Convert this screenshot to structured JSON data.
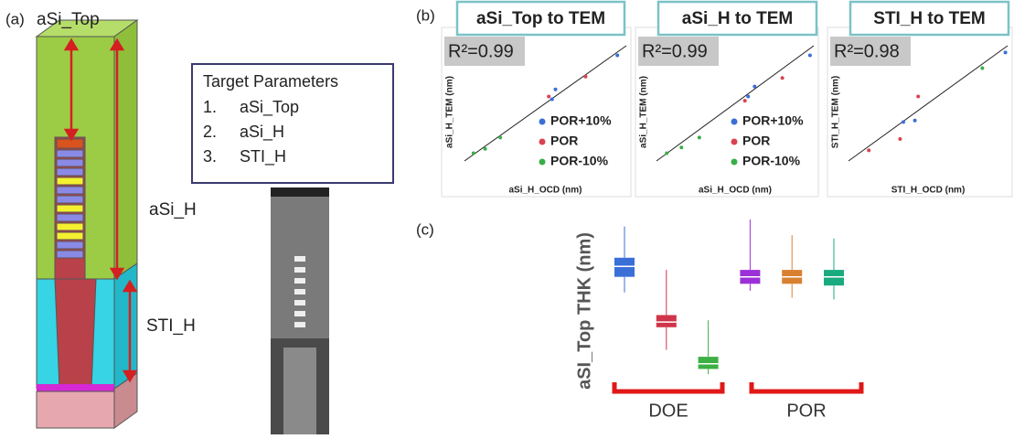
{
  "figure": {
    "panel_a": {
      "label": "(a)",
      "top_label": "aSi_Top",
      "mid_label": "aSi_H",
      "bottom_label": "STI_H",
      "box_title": "Target Parameters",
      "items": [
        [
          "1.",
          "aSi_Top"
        ],
        [
          "2.",
          "aSi_H"
        ],
        [
          "3.",
          "STI_H"
        ]
      ]
    },
    "panel_b": {
      "label": "(b)"
    },
    "panel_c": {
      "label": "(c)"
    }
  },
  "chart_data": [
    {
      "type": "scatter",
      "title": "aSi_Top to TEM",
      "annotation": "R²=0.99",
      "xlabel": "aSi_H_OCD (nm)",
      "ylabel": "aSi_H_TEM (nm)",
      "xlim": [
        0,
        100
      ],
      "ylim": [
        0,
        100
      ],
      "legend": true,
      "series": [
        {
          "name": "POR+10%",
          "color": "#3a6fd6",
          "x": [
            54,
            56,
            93
          ],
          "y": [
            59,
            66,
            90
          ]
        },
        {
          "name": "POR",
          "color": "#d9434f",
          "x": [
            52,
            74
          ],
          "y": [
            61,
            75
          ]
        },
        {
          "name": "POR-10%",
          "color": "#3aae48",
          "x": [
            7,
            14,
            23
          ],
          "y": [
            21,
            24,
            32
          ]
        }
      ]
    },
    {
      "type": "scatter",
      "title": "aSi_H to TEM",
      "annotation": "R²=0.99",
      "xlabel": "aSi_H_OCD (nm)",
      "ylabel": "aSi_H_TEM (nm)",
      "xlim": [
        0,
        100
      ],
      "ylim": [
        0,
        100
      ],
      "legend": true,
      "series": [
        {
          "name": "POR+10%",
          "color": "#3a6fd6",
          "x": [
            58,
            62,
            96
          ],
          "y": [
            61,
            68,
            90
          ]
        },
        {
          "name": "POR",
          "color": "#d9434f",
          "x": [
            56,
            79
          ],
          "y": [
            58,
            74
          ]
        },
        {
          "name": "POR-10%",
          "color": "#3aae48",
          "x": [
            8,
            17,
            28
          ],
          "y": [
            21,
            25,
            32
          ]
        }
      ]
    },
    {
      "type": "scatter",
      "title": "STI_H to TEM",
      "annotation": "R²=0.98",
      "xlabel": "STI_H_OCD (nm)",
      "ylabel": "STI_H_TEM (nm)",
      "xlim": [
        0,
        100
      ],
      "ylim": [
        0,
        100
      ],
      "legend": false,
      "series": [
        {
          "color": "#3a6fd6",
          "x": [
            35,
            42,
            97
          ],
          "y": [
            43,
            44,
            92
          ]
        },
        {
          "color": "#d9434f",
          "x": [
            14,
            33,
            44
          ],
          "y": [
            23,
            31,
            61
          ]
        },
        {
          "color": "#3aae48",
          "x": [
            83
          ],
          "y": [
            81
          ]
        }
      ]
    },
    {
      "type": "box",
      "ylabel": "aSI_Top THK (nm)",
      "ylim": [
        0,
        100
      ],
      "categories": [
        null,
        null,
        null,
        null,
        null,
        null
      ],
      "boxes": [
        {
          "color": "#3b6fd8",
          "low": 58,
          "q1": 67,
          "median": 73,
          "q3": 78,
          "high": 96
        },
        {
          "color": "#d0344a",
          "low": 25,
          "q1": 38,
          "median": 41,
          "q3": 45,
          "high": 71
        },
        {
          "color": "#3cb043",
          "low": 11,
          "q1": 14,
          "median": 17,
          "q3": 21,
          "high": 42
        },
        {
          "color": "#9b30d9",
          "low": 59,
          "q1": 63,
          "median": 67,
          "q3": 71,
          "high": 100
        },
        {
          "color": "#d98030",
          "low": 55,
          "q1": 63,
          "median": 67,
          "q3": 71,
          "high": 91
        },
        {
          "color": "#1aaa80",
          "low": 54,
          "q1": 62,
          "median": 67,
          "q3": 71,
          "high": 89
        }
      ],
      "groups": [
        "DOE",
        "POR"
      ]
    }
  ]
}
